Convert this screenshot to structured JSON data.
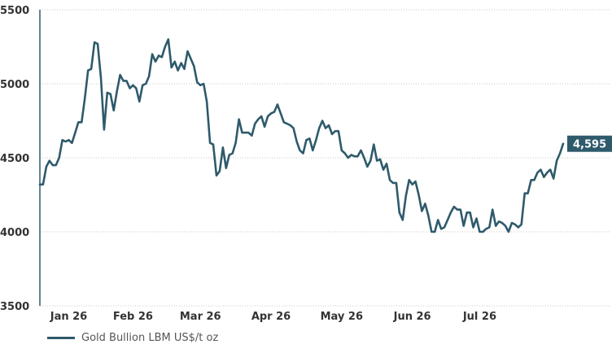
{
  "colors": {
    "line": "#2e5a6b",
    "label_bg": "#2e5a6b",
    "label_text": "#ffffff",
    "grid": "#c9c9c9",
    "axis": "#2e5a6b"
  },
  "chart_data": {
    "type": "line",
    "title": "",
    "xlabel": "",
    "ylabel": "",
    "ylim": [
      3500,
      5500
    ],
    "yticks": [
      "5500",
      "5000",
      "4500",
      "4000",
      "3500"
    ],
    "yticks_values": [
      5500,
      5000,
      4500,
      4000,
      3500
    ],
    "xticks": [
      "Jan 26",
      "Feb 26",
      "Mar 26",
      "Apr 26",
      "May 26",
      "Jun 26",
      "Jul 26"
    ],
    "xtick_index": [
      9,
      29,
      50,
      72,
      94,
      116,
      137
    ],
    "grid": true,
    "legend_position": "bottom-left",
    "last_value_label": "4,595",
    "series": [
      {
        "name": "Gold Bullion LBM US$/t oz",
        "values": [
          4320,
          4320,
          4440,
          4480,
          4450,
          4450,
          4500,
          4620,
          4610,
          4620,
          4600,
          4670,
          4740,
          4740,
          4900,
          5090,
          5100,
          5280,
          5270,
          5040,
          4690,
          4940,
          4930,
          4820,
          4950,
          5060,
          5020,
          5020,
          4970,
          4990,
          4970,
          4880,
          4990,
          5000,
          5050,
          5200,
          5150,
          5190,
          5180,
          5250,
          5300,
          5110,
          5150,
          5090,
          5140,
          5100,
          5220,
          5170,
          5120,
          5010,
          4990,
          5000,
          4880,
          4600,
          4590,
          4380,
          4410,
          4570,
          4430,
          4520,
          4530,
          4600,
          4760,
          4670,
          4670,
          4670,
          4650,
          4730,
          4760,
          4780,
          4710,
          4780,
          4800,
          4810,
          4860,
          4800,
          4740,
          4730,
          4720,
          4700,
          4610,
          4550,
          4530,
          4620,
          4630,
          4550,
          4620,
          4700,
          4750,
          4700,
          4720,
          4660,
          4680,
          4680,
          4550,
          4530,
          4500,
          4520,
          4510,
          4510,
          4550,
          4500,
          4440,
          4480,
          4590,
          4480,
          4490,
          4420,
          4460,
          4350,
          4330,
          4330,
          4130,
          4080,
          4240,
          4350,
          4320,
          4340,
          4250,
          4140,
          4190,
          4110,
          4000,
          4000,
          4080,
          4020,
          4030,
          4080,
          4130,
          4170,
          4150,
          4150,
          4040,
          4130,
          4130,
          4030,
          4090,
          4000,
          4000,
          4020,
          4030,
          4150,
          4040,
          4070,
          4060,
          4040,
          4000,
          4060,
          4050,
          4030,
          4050,
          4260,
          4260,
          4350,
          4350,
          4400,
          4420,
          4370,
          4400,
          4420,
          4360,
          4480,
          4530,
          4595
        ]
      }
    ]
  }
}
